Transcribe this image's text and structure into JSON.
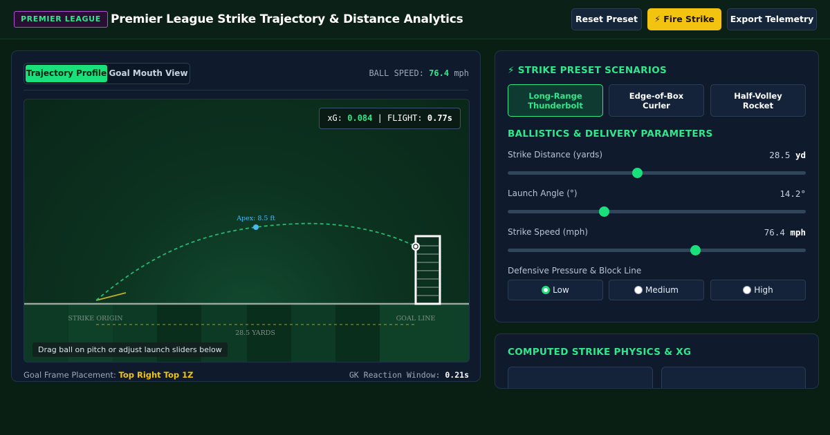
{
  "header": {
    "league_badge": "PREMIER LEAGUE",
    "title": "Premier League Strike Trajectory & Distance Analytics",
    "reset_label": "Reset Preset",
    "fire_label": "⚡ Fire Strike",
    "export_label": "Export Telemetry"
  },
  "left": {
    "tabs": [
      {
        "label": "Trajectory Profile",
        "active": true
      },
      {
        "label": "Goal Mouth View",
        "active": false
      }
    ],
    "ball_speed_label": "BALL SPEED:",
    "ball_speed_value": "76.4",
    "ball_speed_unit": "mph",
    "xg_label": "xG:",
    "xg_value": "0.084",
    "flight_label": "| FLIGHT:",
    "flight_value": "0.77s",
    "apex_label": "Apex: 8.5 ft",
    "strike_origin_label": "STRIKE ORIGIN",
    "goal_line_label": "GOAL LINE",
    "distance_label": "28.5 YARDS",
    "hint": "Drag ball on pitch or adjust launch sliders below",
    "goal_zone_label": "Goal Frame Placement:",
    "goal_zone_value": "Top Right Top 1Z",
    "gk_label": "GK Reaction Window:",
    "gk_value": "0.21s"
  },
  "presets": {
    "title": "⚡ STRIKE PRESET SCENARIOS",
    "items": [
      {
        "line1": "Long-Range",
        "line2": "Thunderbolt",
        "active": true
      },
      {
        "line1": "Edge-of-Box",
        "line2": "Curler",
        "active": false
      },
      {
        "line1": "Half-Volley",
        "line2": "Rocket",
        "active": false
      }
    ]
  },
  "params": {
    "title": "BALLISTICS & DELIVERY PARAMETERS",
    "sliders": [
      {
        "label": "Strike Distance (yards)",
        "value": "28.5",
        "unit": "yd",
        "fraction": 0.435
      },
      {
        "label": "Launch Angle (°)",
        "value": "14.2°",
        "unit": "",
        "fraction": 0.322
      },
      {
        "label": "Strike Speed (mph)",
        "value": "76.4",
        "unit": "mph",
        "fraction": 0.628
      }
    ],
    "pressure_label": "Defensive Pressure & Block Line",
    "pressure_options": [
      {
        "label": "Low",
        "selected": true
      },
      {
        "label": "Medium",
        "selected": false
      },
      {
        "label": "High",
        "selected": false
      }
    ]
  },
  "physics": {
    "title": "COMPUTED STRIKE PHYSICS & XG"
  },
  "colors": {
    "accent": "#2ee88a",
    "gold": "#f2c40f",
    "panel": "#0f1b2d",
    "trajectory": "#2ee88a",
    "apex": "#49b9f0"
  }
}
